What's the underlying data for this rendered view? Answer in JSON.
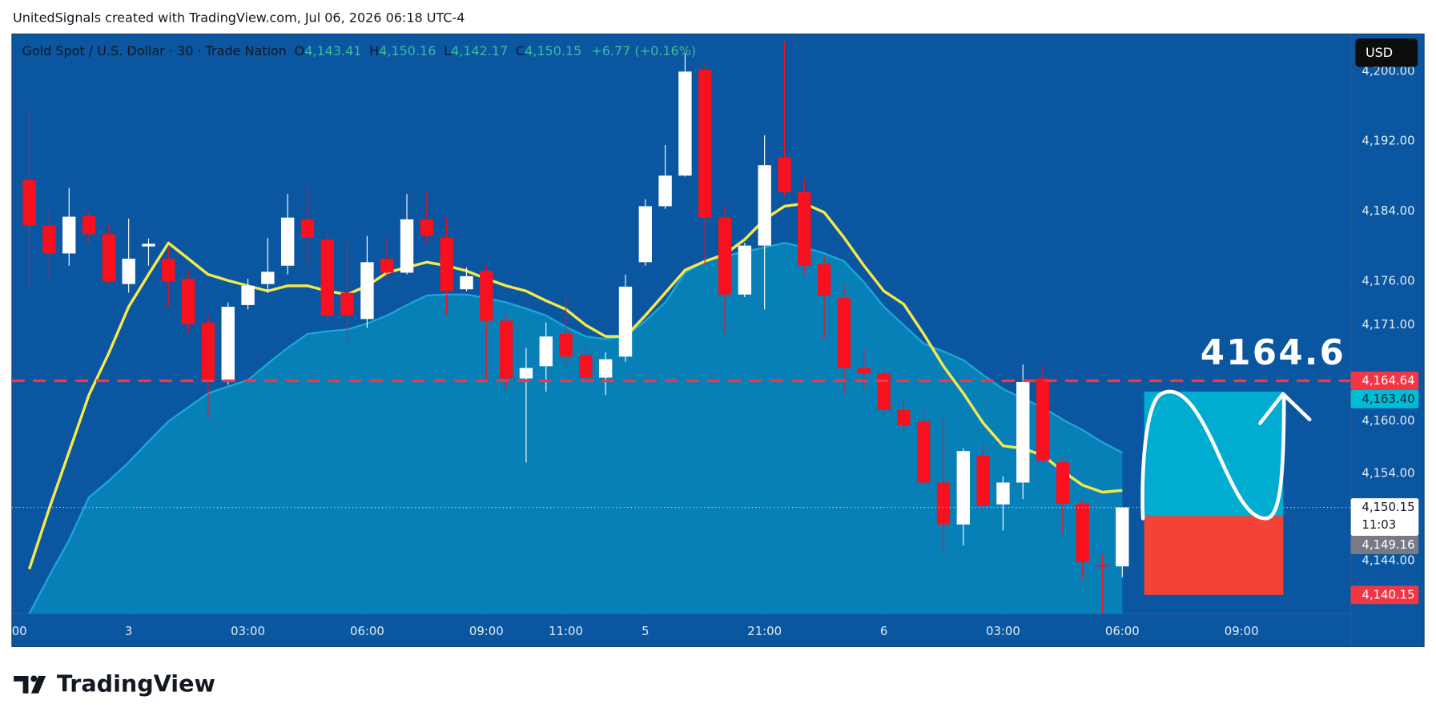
{
  "watermark": "UnitedSignals created with TradingView.com, Jul 06, 2026 06:18 UTC-4",
  "brand": "TradingView",
  "chart_data": {
    "type": "candlestick",
    "title": "Gold Spot / U.S. Dollar · 30 · Trade Nation",
    "ohlc_legend": [
      {
        "name": "O",
        "value": "4,143.41"
      },
      {
        "name": "H",
        "value": "4,150.16"
      },
      {
        "name": "L",
        "value": "4,142.17"
      },
      {
        "name": "C",
        "value": "4,150.15"
      }
    ],
    "change": "+6.77 (+0.16%)",
    "currency": "USD",
    "up_color": "#ffffff",
    "down_color": "#f7101e",
    "x": [
      0,
      1,
      2,
      3,
      4,
      5,
      6,
      7,
      8,
      9,
      10,
      11,
      12,
      13,
      14,
      15,
      16,
      17,
      18,
      19,
      20,
      21,
      22,
      23,
      24,
      25,
      26,
      27,
      28,
      29,
      30,
      31,
      32,
      33,
      34,
      35,
      36,
      37,
      38,
      39,
      40,
      41,
      42,
      43,
      44,
      45,
      46,
      47,
      48,
      49,
      50,
      51,
      52,
      53,
      54,
      55
    ],
    "open": [
      4187.6,
      4182.4,
      4179.2,
      4183.5,
      4181.4,
      4175.7,
      4180.0,
      4178.6,
      4176.3,
      4171.3,
      4164.7,
      4173.3,
      4175.7,
      4177.8,
      4183.1,
      4180.8,
      4174.7,
      4171.7,
      4178.6,
      4177.0,
      4183.1,
      4181.0,
      4175.1,
      4177.2,
      4171.5,
      4164.9,
      4166.3,
      4170.0,
      4167.6,
      4165.0,
      4167.4,
      4178.2,
      4184.6,
      4188.1,
      4200.2,
      4183.3,
      4174.5,
      4180.1,
      4190.2,
      4186.2,
      4178.0,
      4174.1,
      4166.1,
      4165.5,
      4161.3,
      4160.0,
      4153.0,
      4148.2,
      4156.1,
      4150.5,
      4153.0,
      4164.9,
      4155.3,
      4150.6,
      4143.6,
      4143.41
    ],
    "high": [
      4195.8,
      4184.1,
      4186.7,
      4184.1,
      4182.5,
      4183.2,
      4180.9,
      4179.9,
      4177.3,
      4172.1,
      4173.6,
      4176.3,
      4181.0,
      4186.0,
      4186.7,
      4181.5,
      4180.6,
      4181.2,
      4181.0,
      4186.0,
      4186.2,
      4183.3,
      4177.6,
      4177.8,
      4172.1,
      4168.4,
      4171.3,
      4174.2,
      4168.6,
      4167.9,
      4176.8,
      4185.4,
      4191.6,
      4202.1,
      4200.9,
      4184.6,
      4180.4,
      4192.7,
      4203.5,
      4187.8,
      4178.9,
      4175.7,
      4168.4,
      4166.3,
      4162.6,
      4161.1,
      4160.5,
      4156.9,
      4157.4,
      4153.7,
      4166.5,
      4166.3,
      4155.8,
      4151.1,
      4144.8,
      4150.16
    ],
    "low": [
      4175.2,
      4176.3,
      4177.8,
      4180.4,
      4175.7,
      4174.7,
      4177.8,
      4173.1,
      4170.0,
      4160.5,
      4164.2,
      4172.8,
      4174.7,
      4176.8,
      4177.8,
      4171.5,
      4168.6,
      4170.7,
      4176.3,
      4176.8,
      4180.4,
      4172.1,
      4174.9,
      4164.7,
      4163.7,
      4155.3,
      4163.4,
      4166.3,
      4164.7,
      4163.0,
      4166.8,
      4177.8,
      4184.3,
      4188.0,
      4177.8,
      4170.0,
      4174.2,
      4172.8,
      4185.7,
      4176.8,
      4169.4,
      4163.2,
      4163.7,
      4160.5,
      4158.5,
      4152.7,
      4145.0,
      4145.8,
      4149.5,
      4147.5,
      4151.1,
      4155.3,
      4147.1,
      4141.9,
      4138.0,
      4142.17
    ],
    "close": [
      4182.4,
      4179.2,
      4183.4,
      4181.4,
      4176.0,
      4178.6,
      4180.3,
      4176.0,
      4171.1,
      4164.7,
      4173.1,
      4175.5,
      4177.1,
      4183.3,
      4181.0,
      4172.1,
      4172.1,
      4178.2,
      4177.0,
      4183.1,
      4181.2,
      4174.9,
      4176.6,
      4171.5,
      4164.9,
      4166.1,
      4169.7,
      4167.4,
      4165.0,
      4167.1,
      4175.4,
      4184.6,
      4188.1,
      4200.0,
      4183.3,
      4174.5,
      4180.1,
      4189.3,
      4186.2,
      4177.8,
      4174.4,
      4166.1,
      4165.5,
      4161.3,
      4159.5,
      4153.0,
      4148.2,
      4156.6,
      4150.4,
      4153.0,
      4164.5,
      4155.5,
      4150.6,
      4143.9,
      4143.4,
      4150.15
    ],
    "lines": [
      {
        "color": "#1ea7d6",
        "fill": "#0687bb",
        "values": [
          4138.0,
          4142.3,
          4146.4,
          4151.3,
          4153.2,
          4155.3,
          4157.7,
          4160.0,
          4161.6,
          4163.2,
          4164.0,
          4164.7,
          4166.6,
          4168.4,
          4170.0,
          4170.3,
          4170.5,
          4171.2,
          4172.1,
          4173.3,
          4174.4,
          4174.5,
          4174.5,
          4174.1,
          4173.6,
          4172.9,
          4172.1,
          4170.8,
          4169.7,
          4169.4,
          4169.7,
          4171.5,
          4173.6,
          4177.0,
          4178.3,
          4178.9,
          4179.4,
          4179.9,
          4180.4,
          4179.9,
          4179.2,
          4178.3,
          4175.9,
          4173.1,
          4171.0,
          4168.9,
          4168.0,
          4167.0,
          4165.3,
          4163.7,
          4162.6,
          4161.6,
          4160.2,
          4159.0,
          4157.6,
          4156.4
        ]
      },
      {
        "color": "#f5e84a",
        "values": [
          4143.1,
          4150.0,
          4156.5,
          4163.0,
          4167.8,
          4173.1,
          4176.8,
          4180.4,
          4178.6,
          4176.8,
          4176.1,
          4175.5,
          4174.9,
          4175.5,
          4175.5,
          4174.9,
          4174.5,
          4175.5,
          4177.0,
          4177.6,
          4178.2,
          4177.8,
          4177.2,
          4176.3,
          4175.5,
          4174.9,
          4173.8,
          4172.8,
          4171.0,
          4169.7,
          4169.7,
          4172.1,
          4174.7,
          4177.3,
          4178.3,
          4179.1,
          4180.8,
          4183.1,
          4184.6,
          4184.9,
          4183.9,
          4181.0,
          4177.8,
          4174.9,
          4173.4,
          4170.0,
          4166.3,
          4163.2,
          4159.8,
          4157.2,
          4156.9,
          4156.1,
          4154.3,
          4152.7,
          4151.9,
          4152.1
        ]
      }
    ],
    "xlim": [
      -0.876,
      66.5
    ],
    "xticks": [
      {
        "value": -0.5,
        "label": "00"
      },
      {
        "value": 5,
        "label": "3"
      },
      {
        "value": 11,
        "label": "03:00"
      },
      {
        "value": 17,
        "label": "06:00"
      },
      {
        "value": 23,
        "label": "09:00"
      },
      {
        "value": 27,
        "label": "11:00"
      },
      {
        "value": 31,
        "label": "5"
      },
      {
        "value": 37,
        "label": "21:00"
      },
      {
        "value": 43,
        "label": "6"
      },
      {
        "value": 49,
        "label": "03:00"
      },
      {
        "value": 55,
        "label": "06:00"
      },
      {
        "value": 61,
        "label": "09:00"
      }
    ],
    "ylim": [
      4138.0,
      4204.3
    ],
    "yticks": [
      {
        "value": 4144,
        "label": "4,144.00"
      },
      {
        "value": 4154,
        "label": "4,154.00"
      },
      {
        "value": 4160,
        "label": "4,160.00"
      },
      {
        "value": 4171,
        "label": "4,171.00"
      },
      {
        "value": 4176,
        "label": "4,176.00"
      },
      {
        "value": 4184,
        "label": "4,184.00"
      },
      {
        "value": 4192,
        "label": "4,192.00"
      },
      {
        "value": 4200,
        "label": "4,200.00"
      }
    ],
    "price_labels": [
      {
        "value": 4164.64,
        "label": "4,164.64",
        "color": "#f23645",
        "text_color": "#ffffff",
        "line": "dashed"
      },
      {
        "value": 4163.4,
        "label": "4,163.40",
        "color": "#00bcd4",
        "text_color": "#0b2a3a"
      },
      {
        "value": 4150.15,
        "label": "4,150.15",
        "color": "#ffffff",
        "text_color": "#131722",
        "line": "dotted",
        "countdown": "11:03"
      },
      {
        "value": 4149.16,
        "label": "4,149.16",
        "color": "#787b86",
        "text_color": "#ffffff"
      },
      {
        "value": 4140.15,
        "label": "4,140.15",
        "color": "#f23645",
        "text_color": "#ffffff"
      }
    ],
    "position": {
      "x": [
        56.1,
        63.1
      ],
      "target": 4163.4,
      "entry": 4149.16,
      "stop": 4140.15,
      "target_color": "#00acd0",
      "stop_color": "#f44336"
    },
    "annotation": "4164.6"
  }
}
